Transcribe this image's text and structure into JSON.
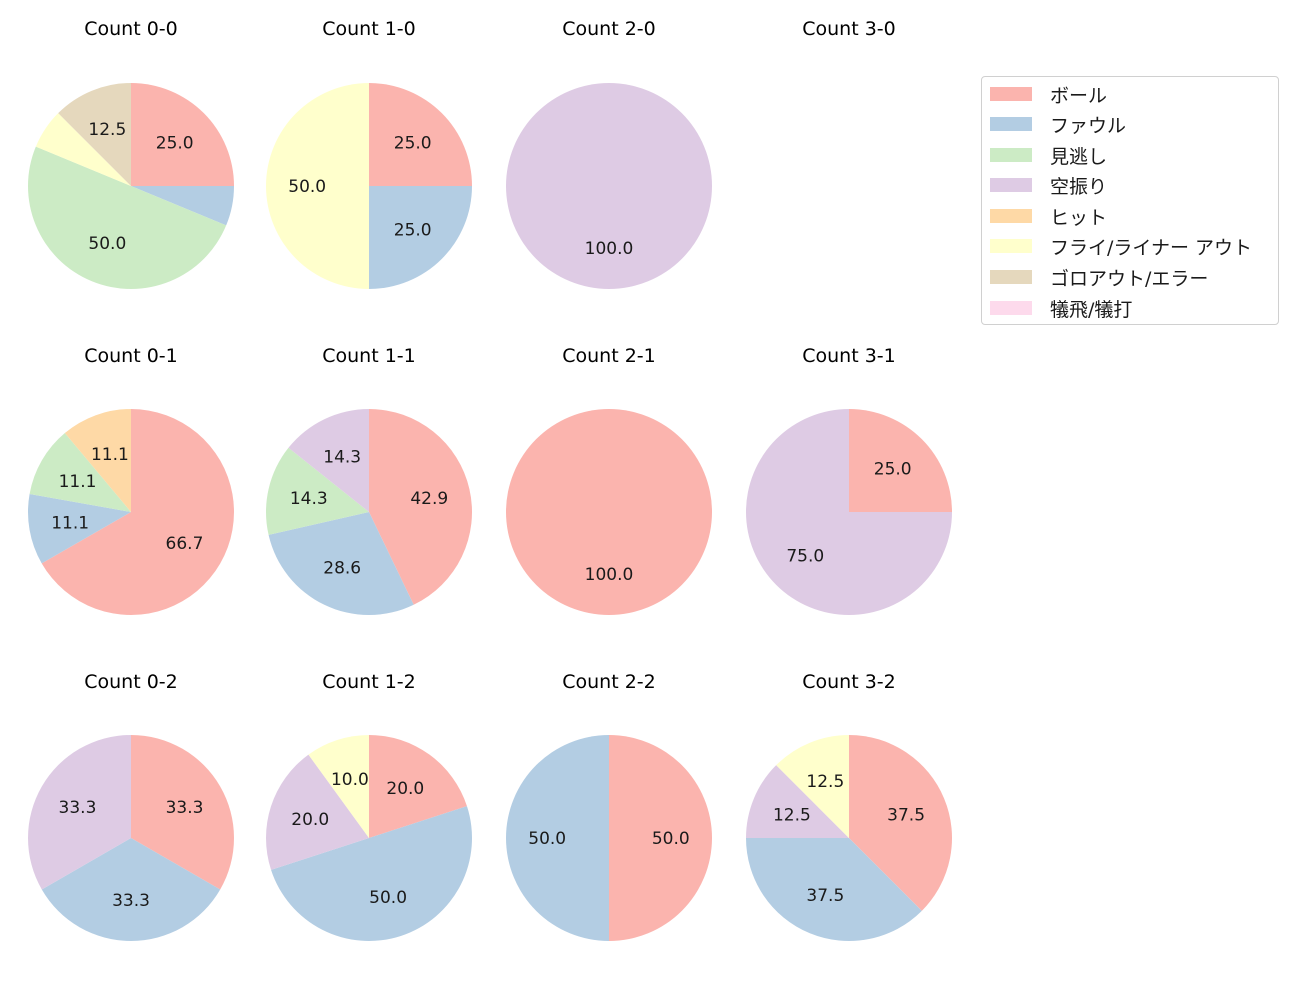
{
  "chart_data": {
    "type": "pie",
    "layout": {
      "rows": 3,
      "cols": 4,
      "start_angle": 90,
      "direction": "clockwise",
      "label_threshold_pct": 10
    },
    "legend": {
      "position": "upper right",
      "entries": [
        {
          "label": "ボール",
          "color": "#fbb4ae"
        },
        {
          "label": "ファウル",
          "color": "#b3cde3"
        },
        {
          "label": "見逃し",
          "color": "#ccebc5"
        },
        {
          "label": "空振り",
          "color": "#decbe4"
        },
        {
          "label": "ヒット",
          "color": "#fed9a6"
        },
        {
          "label": "フライ/ライナー アウト",
          "color": "#ffffcc"
        },
        {
          "label": "ゴロアウト/エラー",
          "color": "#e5d8bd"
        },
        {
          "label": "犠飛/犠打",
          "color": "#fddaec"
        }
      ]
    },
    "categories": [
      "ボール",
      "ファウル",
      "見逃し",
      "空振り",
      "ヒット",
      "フライ/ライナー アウト",
      "ゴロアウト/エラー",
      "犠飛/犠打"
    ],
    "charts": [
      {
        "title": "Count 0-0",
        "row": 0,
        "col": 0,
        "values": [
          25.0,
          6.25,
          50.0,
          0,
          0,
          6.25,
          12.5,
          0
        ]
      },
      {
        "title": "Count 1-0",
        "row": 0,
        "col": 1,
        "values": [
          25.0,
          25.0,
          0,
          0,
          0,
          50.0,
          0,
          0
        ]
      },
      {
        "title": "Count 2-0",
        "row": 0,
        "col": 2,
        "values": [
          0,
          0,
          0,
          100.0,
          0,
          0,
          0,
          0
        ]
      },
      {
        "title": "Count 3-0",
        "row": 0,
        "col": 3,
        "values": []
      },
      {
        "title": "Count 0-1",
        "row": 1,
        "col": 0,
        "values": [
          66.7,
          11.1,
          11.1,
          0,
          11.1,
          0,
          0,
          0
        ]
      },
      {
        "title": "Count 1-1",
        "row": 1,
        "col": 1,
        "values": [
          42.9,
          28.6,
          14.3,
          14.3,
          0,
          0,
          0,
          0
        ]
      },
      {
        "title": "Count 2-1",
        "row": 1,
        "col": 2,
        "values": [
          100.0,
          0,
          0,
          0,
          0,
          0,
          0,
          0
        ]
      },
      {
        "title": "Count 3-1",
        "row": 1,
        "col": 3,
        "values": [
          25.0,
          0,
          0,
          75.0,
          0,
          0,
          0,
          0
        ]
      },
      {
        "title": "Count 0-2",
        "row": 2,
        "col": 0,
        "values": [
          33.3,
          33.3,
          0,
          33.3,
          0,
          0,
          0,
          0
        ]
      },
      {
        "title": "Count 1-2",
        "row": 2,
        "col": 1,
        "values": [
          20.0,
          50.0,
          0,
          20.0,
          0,
          10.0,
          0,
          0
        ]
      },
      {
        "title": "Count 2-2",
        "row": 2,
        "col": 2,
        "values": [
          50.0,
          50.0,
          0,
          0,
          0,
          0,
          0,
          0
        ]
      },
      {
        "title": "Count 3-2",
        "row": 2,
        "col": 3,
        "values": [
          37.5,
          37.5,
          0,
          12.5,
          0,
          12.5,
          0,
          0
        ]
      }
    ]
  }
}
